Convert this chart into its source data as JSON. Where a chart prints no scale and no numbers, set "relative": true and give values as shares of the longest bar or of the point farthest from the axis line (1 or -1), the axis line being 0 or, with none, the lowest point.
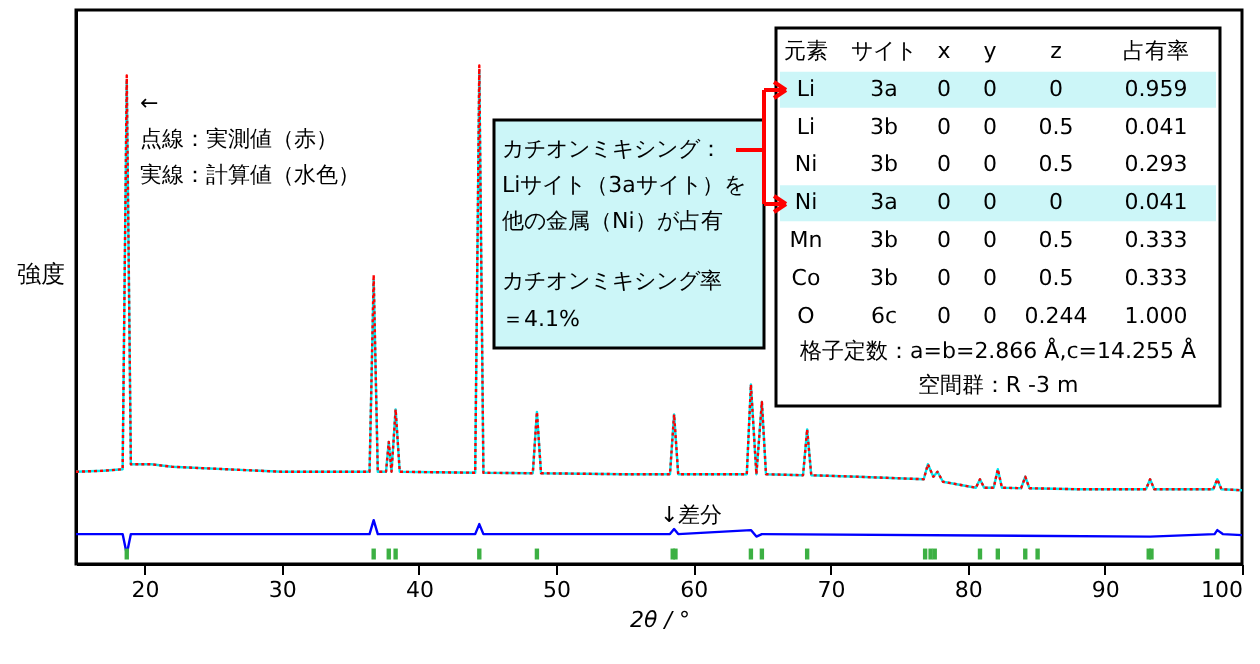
{
  "chart_data": {
    "type": "line",
    "relative": true,
    "xlabel": "2θ / °",
    "ylabel": "強度",
    "xlim": [
      15,
      100
    ],
    "xticks": [
      20,
      30,
      40,
      50,
      60,
      70,
      80,
      90,
      100
    ],
    "tick_labels": "x",
    "grid": false,
    "x": [
      15,
      17,
      18.4,
      18.7,
      19.0,
      20.5,
      22,
      30,
      36.4,
      36.7,
      37.0,
      37.6,
      37.8,
      38.0,
      38.3,
      38.6,
      44.1,
      44.4,
      44.7,
      48.3,
      48.6,
      48.9,
      55,
      58.3,
      58.6,
      58.9,
      63.9,
      64.2,
      64.6,
      65.0,
      65.3,
      68.0,
      68.3,
      68.6,
      72,
      76.8,
      77.1,
      77.5,
      77.8,
      78.2,
      80.6,
      80.9,
      81.2,
      81.9,
      82.2,
      82.5,
      83.9,
      84.2,
      84.5,
      88,
      93.0,
      93.3,
      93.6,
      97.9,
      98.2,
      98.5,
      100
    ],
    "series": [
      {
        "color": "#00e5ee",
        "line_style": "solid",
        "values": [
          0.185,
          0.187,
          0.19,
          0.97,
          0.2,
          0.2,
          0.195,
          0.185,
          0.185,
          0.57,
          0.185,
          0.185,
          0.245,
          0.185,
          0.31,
          0.185,
          0.183,
          0.99,
          0.183,
          0.182,
          0.305,
          0.182,
          0.18,
          0.18,
          0.3,
          0.18,
          0.18,
          0.36,
          0.18,
          0.325,
          0.18,
          0.178,
          0.27,
          0.178,
          0.175,
          0.17,
          0.2,
          0.175,
          0.185,
          0.165,
          0.153,
          0.17,
          0.153,
          0.153,
          0.19,
          0.153,
          0.152,
          0.175,
          0.152,
          0.15,
          0.15,
          0.17,
          0.15,
          0.15,
          0.17,
          0.15,
          0.148
        ]
      },
      {
        "color": "#ff0000",
        "line_style": "dotted",
        "values": [
          0.185,
          0.187,
          0.19,
          0.98,
          0.2,
          0.2,
          0.195,
          0.185,
          0.185,
          0.58,
          0.185,
          0.185,
          0.245,
          0.185,
          0.31,
          0.185,
          0.183,
          1.0,
          0.183,
          0.182,
          0.305,
          0.182,
          0.18,
          0.18,
          0.3,
          0.18,
          0.18,
          0.36,
          0.18,
          0.325,
          0.18,
          0.178,
          0.27,
          0.178,
          0.175,
          0.17,
          0.2,
          0.175,
          0.185,
          0.165,
          0.153,
          0.17,
          0.153,
          0.153,
          0.19,
          0.153,
          0.152,
          0.175,
          0.152,
          0.15,
          0.15,
          0.17,
          0.15,
          0.15,
          0.17,
          0.15,
          0.148
        ]
      },
      {
        "color": "#0000ff",
        "line_style": "solid",
        "x": [
          15,
          18.4,
          18.7,
          19.0,
          36.4,
          36.7,
          37.0,
          44.1,
          44.4,
          44.7,
          58.3,
          58.6,
          58.9,
          64.2,
          64.6,
          65.0,
          93.3,
          98.0,
          98.2,
          98.6,
          100
        ],
        "values": [
          0.06,
          0.06,
          0.02,
          0.06,
          0.06,
          0.088,
          0.06,
          0.06,
          0.08,
          0.06,
          0.06,
          0.07,
          0.06,
          0.068,
          0.055,
          0.06,
          0.055,
          0.06,
          0.068,
          0.06,
          0.058
        ]
      },
      {
        "type": "scatter",
        "color": "#3cb043",
        "x": [
          18.7,
          36.7,
          37.8,
          38.3,
          44.4,
          48.6,
          58.5,
          58.7,
          64.2,
          65.0,
          68.3,
          76.9,
          77.3,
          77.6,
          80.9,
          82.2,
          84.2,
          85.1,
          93.2,
          93.4,
          98.2
        ],
        "values": [
          0.02,
          0.02,
          0.02,
          0.02,
          0.02,
          0.02,
          0.02,
          0.02,
          0.02,
          0.02,
          0.02,
          0.02,
          0.02,
          0.02,
          0.02,
          0.02,
          0.02,
          0.02,
          0.02,
          0.02,
          0.02
        ]
      }
    ],
    "annotations": [
      "←",
      "点線：実測値（赤）",
      "実線：計算値（水色）",
      "カチオンミキシング：",
      "Liサイト（3aサイト）を",
      "他の金属（Ni）が占有",
      "カチオンミキシング率",
      "＝4.1%",
      "↓差分",
      "元素 サイト x y z 占有率",
      "Li 3a 0 0 0 0.959",
      "Li 3b 0 0 0.5 0.041",
      "Ni 3b 0 0 0.5 0.293",
      "Ni 3a 0 0 0 0.041",
      "Mn 3b 0 0 0.5 0.333",
      "Co 3b 0 0 0.5 0.333",
      "O 6c 0 0 0.244 1.000",
      "格子定数：a=b=2.866 Å,c=14.255 Å",
      "空間群：R -3 m"
    ]
  }
}
